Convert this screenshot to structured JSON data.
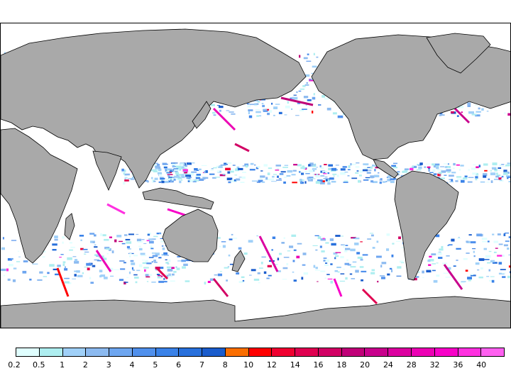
{
  "map": {
    "projection": "equirectangular",
    "center_longitude": "180",
    "colors": {
      "ocean": "#ffffff",
      "land": "#a9a9a9",
      "coastline": "#000000"
    }
  },
  "legend": {
    "colors": [
      "#e0ffff",
      "#aeeef0",
      "#a0d0f8",
      "#8cbaf0",
      "#6ea6f0",
      "#5090ec",
      "#3a82e8",
      "#2870dc",
      "#1a5ccc",
      "#fa6e00",
      "#ff0000",
      "#f00030",
      "#e00050",
      "#d20064",
      "#c00078",
      "#c8008c",
      "#dc00a0",
      "#ec00b4",
      "#f800c8",
      "#ff30e0",
      "#ff60f0"
    ],
    "ticks": [
      "0.2",
      "0.5",
      "1",
      "2",
      "3",
      "4",
      "5",
      "6",
      "7",
      "8",
      "10",
      "12",
      "14",
      "16",
      "18",
      "20",
      "24",
      "28",
      "32",
      "36",
      "40"
    ]
  }
}
